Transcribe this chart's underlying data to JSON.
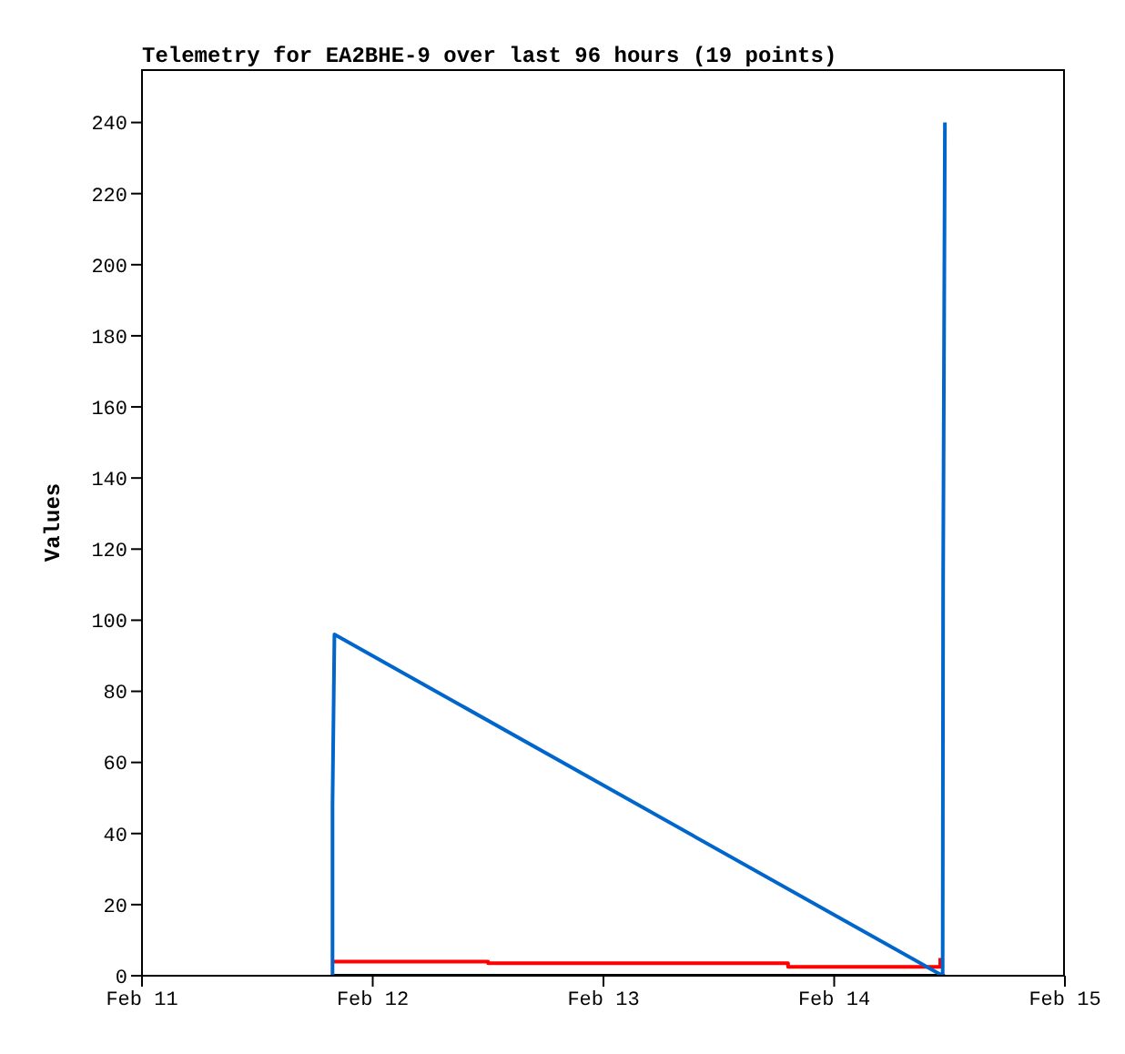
{
  "chart_data": {
    "type": "line",
    "title": "Telemetry for EA2BHE-9 over last 96 hours (19 points)",
    "ylabel": "Values",
    "xlim": [
      "--02-11",
      "--02-15"
    ],
    "xticks": [
      {
        "value": "--02-11",
        "label": "Feb 11"
      },
      {
        "value": "--02-12",
        "label": "Feb 12"
      },
      {
        "value": "--02-13",
        "label": "Feb 13"
      },
      {
        "value": "--02-14",
        "label": "Feb 14"
      },
      {
        "value": "--02-15",
        "label": "Feb 15"
      }
    ],
    "ylim": [
      0,
      255
    ],
    "yticks": [
      0,
      20,
      40,
      60,
      80,
      100,
      120,
      140,
      160,
      180,
      200,
      220,
      240
    ],
    "grid": false,
    "legend": false,
    "marker": "none",
    "line_style": "solid",
    "series": [
      {
        "color": "#000000",
        "x": [
          "--02-11T19:49",
          "--02-14T11:31"
        ],
        "values": [
          0,
          0
        ]
      },
      {
        "color": "#ff0000",
        "x": [
          "--02-11T19:55",
          "--02-12T12:00",
          "--02-12T12:00",
          "--02-13T19:12",
          "--02-13T19:12",
          "--02-14T11:02",
          "--02-14T11:02"
        ],
        "values": [
          4,
          4,
          3.5,
          3.5,
          2.5,
          2.5,
          5
        ]
      },
      {
        "color": "#0066cc",
        "x": [
          "--02-11T19:49",
          "--02-11T19:49",
          "--02-11T20:01",
          "--02-14T11:17",
          "--02-14T11:20",
          "--02-14T11:31"
        ],
        "values": [
          0,
          48,
          96,
          0,
          112,
          240
        ]
      }
    ]
  }
}
